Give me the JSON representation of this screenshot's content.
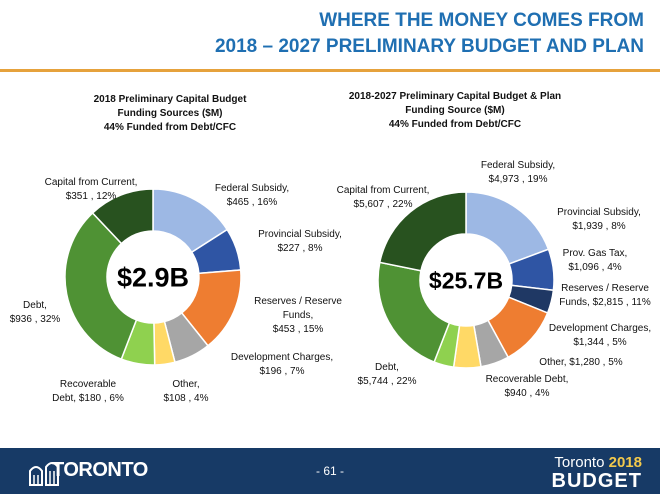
{
  "header": {
    "title_line1": "WHERE THE MONEY COMES FROM",
    "title_line2": "2018 – 2027 PRELIMINARY BUDGET AND PLAN"
  },
  "chart_data": [
    {
      "type": "pie",
      "title_lines": [
        "2018 Preliminary Capital Budget",
        "Funding Sources ($M)",
        "44% Funded from Debt/CFC"
      ],
      "center_label": "$2.9B",
      "slices": [
        {
          "name": "Federal Subsidy",
          "value": 465,
          "percent": 16,
          "label": [
            "Federal Subsidy,",
            "$465 , 16%"
          ],
          "color": "#9db8e4"
        },
        {
          "name": "Provincial Subsidy",
          "value": 227,
          "percent": 8,
          "label": [
            "Provincial Subsidy,",
            "$227 , 8%"
          ],
          "color": "#2f55a4"
        },
        {
          "name": "Reserves / Reserve Funds",
          "value": 453,
          "percent": 15,
          "label": [
            "Reserves / Reserve",
            "Funds,",
            "$453 , 15%"
          ],
          "color": "#ee7d31"
        },
        {
          "name": "Development Charges",
          "value": 196,
          "percent": 7,
          "label": [
            "Development Charges,",
            "$196 , 7%"
          ],
          "color": "#a6a6a6"
        },
        {
          "name": "Other",
          "value": 108,
          "percent": 4,
          "label": [
            "Other,",
            "$108 , 4%"
          ],
          "color": "#ffd966"
        },
        {
          "name": "Recoverable Debt",
          "value": 180,
          "percent": 6,
          "label": [
            "Recoverable",
            "Debt, $180 , 6%"
          ],
          "color": "#8fd14f"
        },
        {
          "name": "Debt",
          "value": 936,
          "percent": 32,
          "label": [
            "Debt,",
            "$936 , 32%"
          ],
          "color": "#4f9234"
        },
        {
          "name": "Capital from Current",
          "value": 351,
          "percent": 12,
          "label": [
            "Capital from Current,",
            "$351 , 12%"
          ],
          "color": "#28521f"
        }
      ]
    },
    {
      "type": "pie",
      "title_lines": [
        "2018-2027 Preliminary Capital Budget & Plan",
        "Funding Source ($M)",
        "44% Funded from Debt/CFC"
      ],
      "center_label": "$25.7B",
      "slices": [
        {
          "name": "Federal Subsidy",
          "value": 4973,
          "percent": 19,
          "label": [
            "Federal Subsidy,",
            "$4,973 , 19%"
          ],
          "color": "#9db8e4"
        },
        {
          "name": "Provincial Subsidy",
          "value": 1939,
          "percent": 8,
          "label": [
            "Provincial Subsidy,",
            "$1,939 , 8%"
          ],
          "color": "#2f55a4"
        },
        {
          "name": "Prov. Gas Tax",
          "value": 1096,
          "percent": 4,
          "label": [
            "Prov. Gas Tax,",
            "$1,096 , 4%"
          ],
          "color": "#1f3864"
        },
        {
          "name": "Reserves / Reserve Funds",
          "value": 2815,
          "percent": 11,
          "label": [
            "Reserves / Reserve",
            "Funds, $2,815 , 11%"
          ],
          "color": "#ee7d31"
        },
        {
          "name": "Development Charges",
          "value": 1344,
          "percent": 5,
          "label": [
            "Development Charges,",
            "$1,344 , 5%"
          ],
          "color": "#a6a6a6"
        },
        {
          "name": "Other",
          "value": 1280,
          "percent": 5,
          "label": [
            "Other, $1,280 , 5%"
          ],
          "color": "#ffd966"
        },
        {
          "name": "Recoverable Debt",
          "value": 940,
          "percent": 4,
          "label": [
            "Recoverable Debt,",
            "$940 , 4%"
          ],
          "color": "#8fd14f"
        },
        {
          "name": "Debt",
          "value": 5744,
          "percent": 22,
          "label": [
            "Debt,",
            "$5,744 , 22%"
          ],
          "color": "#4f9234"
        },
        {
          "name": "Capital from Current",
          "value": 5607,
          "percent": 22,
          "label": [
            "Capital from Current,",
            "$5,607 , 22%"
          ],
          "color": "#28521f"
        }
      ]
    }
  ],
  "footer": {
    "logo_text": "TORONTO",
    "page_number": "- 61 -",
    "brand_city": "Toronto",
    "brand_year": "2018",
    "brand_word": "BUDGET"
  },
  "colors": {
    "title": "#1f6fb2",
    "accent_rule": "#e6a23c",
    "footer_bg": "#173a66",
    "brand_year": "#f2c94c"
  }
}
